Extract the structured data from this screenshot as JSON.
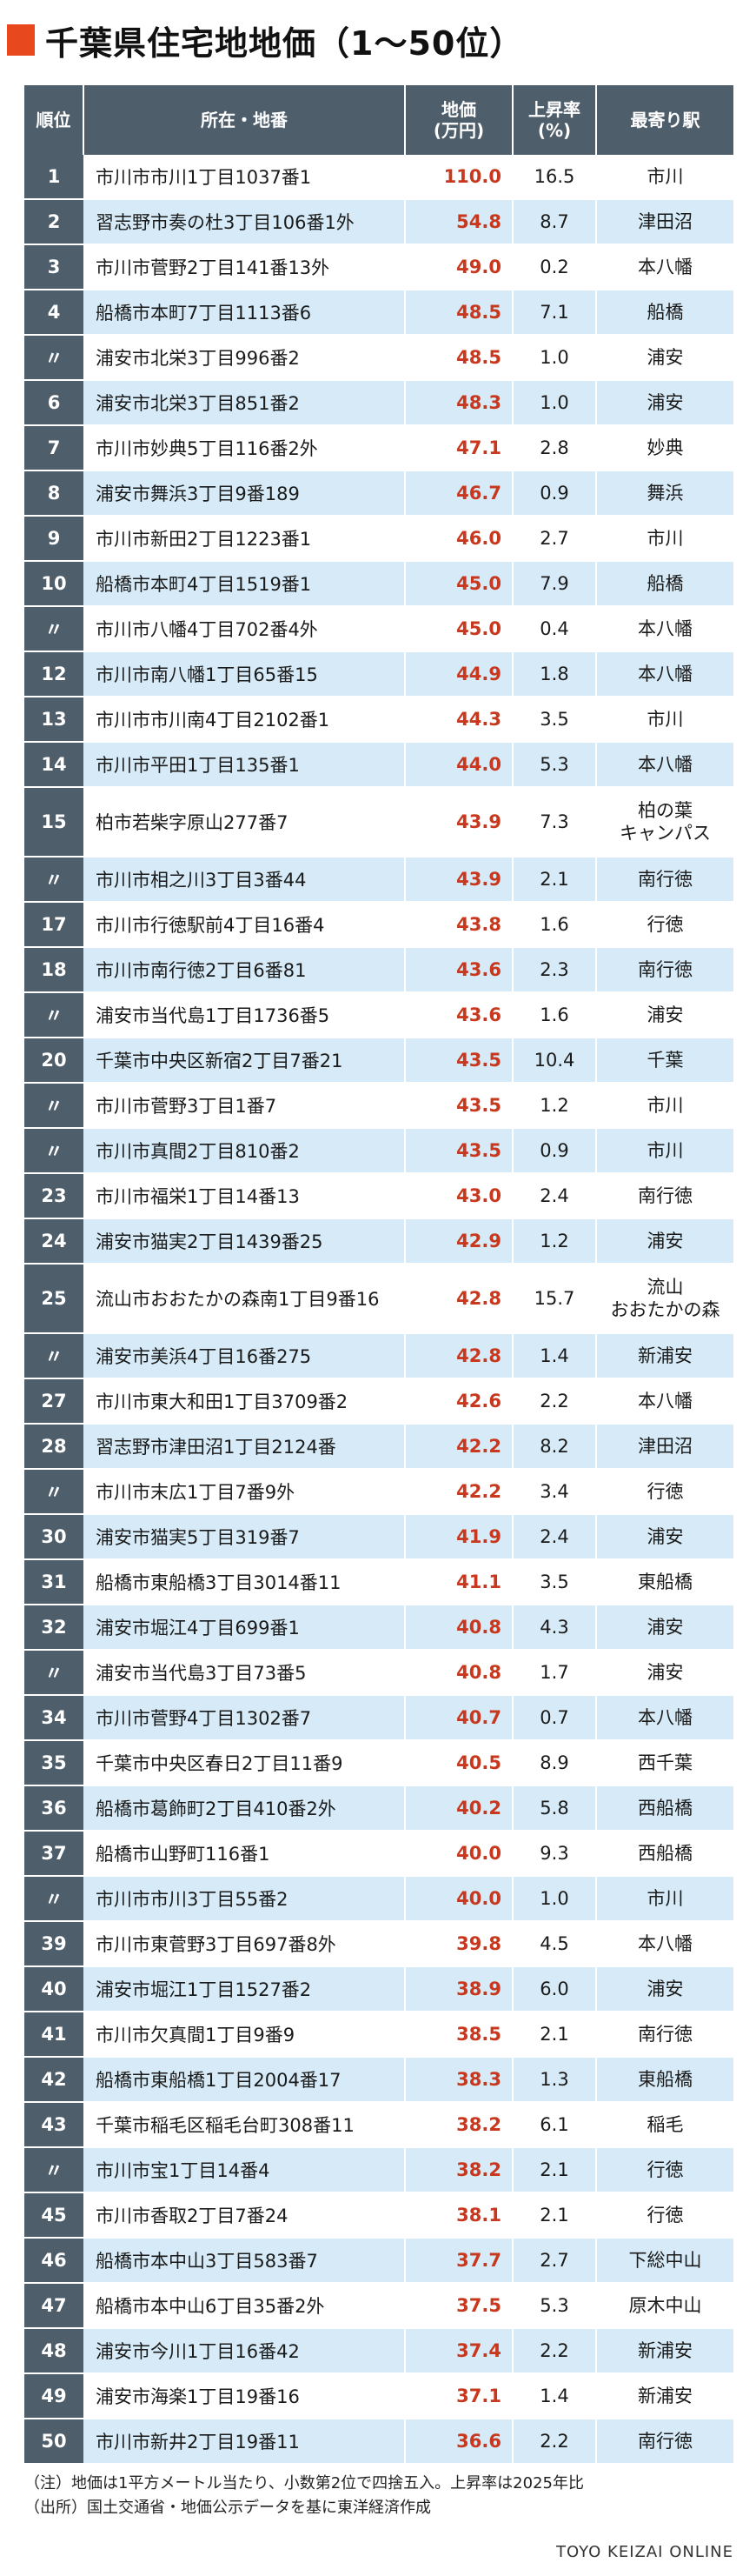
{
  "title": "千葉県住宅地地価（1〜50位）",
  "headers": {
    "rank": "順位",
    "address": "所在・地番",
    "price_line1": "地価",
    "price_line2": "(万円)",
    "rate_line1": "上昇率",
    "rate_line2": "(%)",
    "station": "最寄り駅"
  },
  "rows": [
    {
      "rank": "1",
      "address": "市川市市川1丁目1037番1",
      "price": "110.0",
      "rate": "16.5",
      "station": "市川"
    },
    {
      "rank": "2",
      "address": "習志野市奏の杜3丁目106番1外",
      "price": "54.8",
      "rate": "8.7",
      "station": "津田沼"
    },
    {
      "rank": "3",
      "address": "市川市菅野2丁目141番13外",
      "price": "49.0",
      "rate": "0.2",
      "station": "本八幡"
    },
    {
      "rank": "4",
      "address": "船橋市本町7丁目1113番6",
      "price": "48.5",
      "rate": "7.1",
      "station": "船橋"
    },
    {
      "rank": "〃",
      "address": "浦安市北栄3丁目996番2",
      "price": "48.5",
      "rate": "1.0",
      "station": "浦安"
    },
    {
      "rank": "6",
      "address": "浦安市北栄3丁目851番2",
      "price": "48.3",
      "rate": "1.0",
      "station": "浦安"
    },
    {
      "rank": "7",
      "address": "市川市妙典5丁目116番2外",
      "price": "47.1",
      "rate": "2.8",
      "station": "妙典"
    },
    {
      "rank": "8",
      "address": "浦安市舞浜3丁目9番189",
      "price": "46.7",
      "rate": "0.9",
      "station": "舞浜"
    },
    {
      "rank": "9",
      "address": "市川市新田2丁目1223番1",
      "price": "46.0",
      "rate": "2.7",
      "station": "市川"
    },
    {
      "rank": "10",
      "address": "船橋市本町4丁目1519番1",
      "price": "45.0",
      "rate": "7.9",
      "station": "船橋"
    },
    {
      "rank": "〃",
      "address": "市川市八幡4丁目702番4外",
      "price": "45.0",
      "rate": "0.4",
      "station": "本八幡"
    },
    {
      "rank": "12",
      "address": "市川市南八幡1丁目65番15",
      "price": "44.9",
      "rate": "1.8",
      "station": "本八幡"
    },
    {
      "rank": "13",
      "address": "市川市市川南4丁目2102番1",
      "price": "44.3",
      "rate": "3.5",
      "station": "市川"
    },
    {
      "rank": "14",
      "address": "市川市平田1丁目135番1",
      "price": "44.0",
      "rate": "5.3",
      "station": "本八幡"
    },
    {
      "rank": "15",
      "address": "柏市若柴字原山277番7",
      "price": "43.9",
      "rate": "7.3",
      "station": "柏の葉",
      "station2": "キャンパス"
    },
    {
      "rank": "〃",
      "address": "市川市相之川3丁目3番44",
      "price": "43.9",
      "rate": "2.1",
      "station": "南行徳"
    },
    {
      "rank": "17",
      "address": "市川市行徳駅前4丁目16番4",
      "price": "43.8",
      "rate": "1.6",
      "station": "行徳"
    },
    {
      "rank": "18",
      "address": "市川市南行徳2丁目6番81",
      "price": "43.6",
      "rate": "2.3",
      "station": "南行徳"
    },
    {
      "rank": "〃",
      "address": "浦安市当代島1丁目1736番5",
      "price": "43.6",
      "rate": "1.6",
      "station": "浦安"
    },
    {
      "rank": "20",
      "address": "千葉市中央区新宿2丁目7番21",
      "price": "43.5",
      "rate": "10.4",
      "station": "千葉"
    },
    {
      "rank": "〃",
      "address": "市川市菅野3丁目1番7",
      "price": "43.5",
      "rate": "1.2",
      "station": "市川"
    },
    {
      "rank": "〃",
      "address": "市川市真間2丁目810番2",
      "price": "43.5",
      "rate": "0.9",
      "station": "市川"
    },
    {
      "rank": "23",
      "address": "市川市福栄1丁目14番13",
      "price": "43.0",
      "rate": "2.4",
      "station": "南行徳"
    },
    {
      "rank": "24",
      "address": "浦安市猫実2丁目1439番25",
      "price": "42.9",
      "rate": "1.2",
      "station": "浦安"
    },
    {
      "rank": "25",
      "address": "流山市おおたかの森南1丁目9番16",
      "price": "42.8",
      "rate": "15.7",
      "station": "流山",
      "station2": "おおたかの森"
    },
    {
      "rank": "〃",
      "address": "浦安市美浜4丁目16番275",
      "price": "42.8",
      "rate": "1.4",
      "station": "新浦安"
    },
    {
      "rank": "27",
      "address": "市川市東大和田1丁目3709番2",
      "price": "42.6",
      "rate": "2.2",
      "station": "本八幡"
    },
    {
      "rank": "28",
      "address": "習志野市津田沼1丁目2124番",
      "price": "42.2",
      "rate": "8.2",
      "station": "津田沼"
    },
    {
      "rank": "〃",
      "address": "市川市末広1丁目7番9外",
      "price": "42.2",
      "rate": "3.4",
      "station": "行徳"
    },
    {
      "rank": "30",
      "address": "浦安市猫実5丁目319番7",
      "price": "41.9",
      "rate": "2.4",
      "station": "浦安"
    },
    {
      "rank": "31",
      "address": "船橋市東船橋3丁目3014番11",
      "price": "41.1",
      "rate": "3.5",
      "station": "東船橋"
    },
    {
      "rank": "32",
      "address": "浦安市堀江4丁目699番1",
      "price": "40.8",
      "rate": "4.3",
      "station": "浦安"
    },
    {
      "rank": "〃",
      "address": "浦安市当代島3丁目73番5",
      "price": "40.8",
      "rate": "1.7",
      "station": "浦安"
    },
    {
      "rank": "34",
      "address": "市川市菅野4丁目1302番7",
      "price": "40.7",
      "rate": "0.7",
      "station": "本八幡"
    },
    {
      "rank": "35",
      "address": "千葉市中央区春日2丁目11番9",
      "price": "40.5",
      "rate": "8.9",
      "station": "西千葉"
    },
    {
      "rank": "36",
      "address": "船橋市葛飾町2丁目410番2外",
      "price": "40.2",
      "rate": "5.8",
      "station": "西船橋"
    },
    {
      "rank": "37",
      "address": "船橋市山野町116番1",
      "price": "40.0",
      "rate": "9.3",
      "station": "西船橋"
    },
    {
      "rank": "〃",
      "address": "市川市市川3丁目55番2",
      "price": "40.0",
      "rate": "1.0",
      "station": "市川"
    },
    {
      "rank": "39",
      "address": "市川市東菅野3丁目697番8外",
      "price": "39.8",
      "rate": "4.5",
      "station": "本八幡"
    },
    {
      "rank": "40",
      "address": "浦安市堀江1丁目1527番2",
      "price": "38.9",
      "rate": "6.0",
      "station": "浦安"
    },
    {
      "rank": "41",
      "address": "市川市欠真間1丁目9番9",
      "price": "38.5",
      "rate": "2.1",
      "station": "南行徳"
    },
    {
      "rank": "42",
      "address": "船橋市東船橋1丁目2004番17",
      "price": "38.3",
      "rate": "1.3",
      "station": "東船橋"
    },
    {
      "rank": "43",
      "address": "千葉市稲毛区稲毛台町308番11",
      "price": "38.2",
      "rate": "6.1",
      "station": "稲毛"
    },
    {
      "rank": "〃",
      "address": "市川市宝1丁目14番4",
      "price": "38.2",
      "rate": "2.1",
      "station": "行徳"
    },
    {
      "rank": "45",
      "address": "市川市香取2丁目7番24",
      "price": "38.1",
      "rate": "2.1",
      "station": "行徳"
    },
    {
      "rank": "46",
      "address": "船橋市本中山3丁目583番7",
      "price": "37.7",
      "rate": "2.7",
      "station": "下総中山"
    },
    {
      "rank": "47",
      "address": "船橋市本中山6丁目35番2外",
      "price": "37.5",
      "rate": "5.3",
      "station": "原木中山"
    },
    {
      "rank": "48",
      "address": "浦安市今川1丁目16番42",
      "price": "37.4",
      "rate": "2.2",
      "station": "新浦安"
    },
    {
      "rank": "49",
      "address": "浦安市海楽1丁目19番16",
      "price": "37.1",
      "rate": "1.4",
      "station": "新浦安"
    },
    {
      "rank": "50",
      "address": "市川市新井2丁目19番11",
      "price": "36.6",
      "rate": "2.2",
      "station": "南行徳"
    }
  ],
  "notes": {
    "line1": "（注）地価は1平方メートル当たり、小数第2位で四捨五入。上昇率は2025年比",
    "line2": "（出所）国土交通省・地価公示データを基に東洋経済作成"
  },
  "brand": "TOYO KEIZAI ONLINE",
  "colors": {
    "header_bg": "#4f5e6b",
    "accent": "#e8481d",
    "price_text": "#c8381e",
    "row_alt": "#d6ebf7"
  }
}
